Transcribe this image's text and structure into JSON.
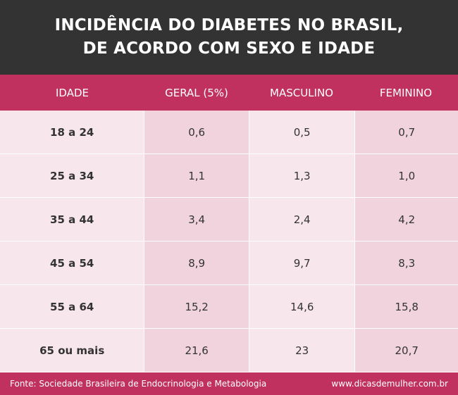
{
  "title": {
    "line1": "INCIDÊNCIA DO DIABETES NO BRASIL,",
    "line2": "DE ACORDO COM SEXO E IDADE"
  },
  "colors": {
    "title_bg": "#333334",
    "accent": "#c0315f",
    "cell_light": "#f7e6eb",
    "cell_dark": "#f0d3dd"
  },
  "chart_data": {
    "type": "table",
    "columns": [
      "IDADE",
      "GERAL (5%)",
      "MASCULINO",
      "FEMININO"
    ],
    "rows": [
      [
        "18 a 24",
        "0,6",
        "0,5",
        "0,7"
      ],
      [
        "25 a 34",
        "1,1",
        "1,3",
        "1,0"
      ],
      [
        "35 a 44",
        "3,4",
        "2,4",
        "4,2"
      ],
      [
        "45 a 54",
        "8,9",
        "9,7",
        "8,3"
      ],
      [
        "55 a 64",
        "15,2",
        "14,6",
        "15,8"
      ],
      [
        "65 ou mais",
        "21,6",
        "23",
        "20,7"
      ]
    ]
  },
  "footer": {
    "source": "Fonte: Sociedade Brasileira de Endocrinologia e Metabologia",
    "site": "www.dicasdemulher.com.br"
  }
}
